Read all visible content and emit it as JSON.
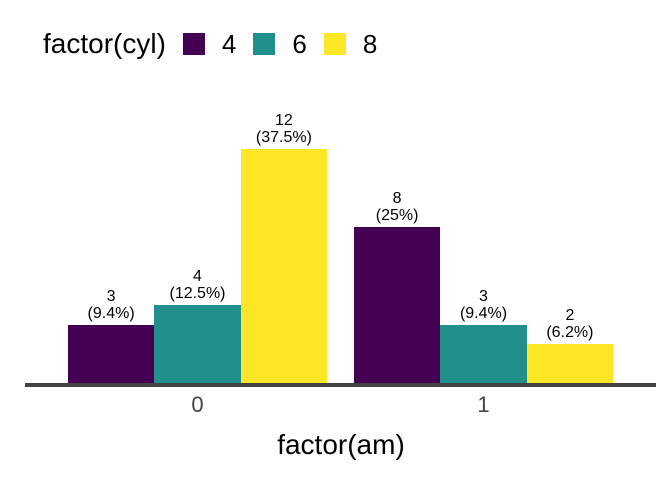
{
  "chart_data": {
    "type": "bar",
    "title": "",
    "xlabel": "factor(am)",
    "ylabel": "",
    "categories": [
      "0",
      "1"
    ],
    "legend": {
      "title": "factor(cyl)",
      "position": "top-left"
    },
    "series": [
      {
        "name": "4",
        "color": "#440154",
        "values": [
          3,
          8
        ],
        "labels": [
          [
            "3",
            "(9.4%)"
          ],
          [
            "8",
            "(25%)"
          ]
        ]
      },
      {
        "name": "6",
        "color": "#21908C",
        "values": [
          4,
          3
        ],
        "labels": [
          [
            "4",
            "(12.5%)"
          ],
          [
            "3",
            "(9.4%)"
          ]
        ]
      },
      {
        "name": "8",
        "color": "#FDE725",
        "values": [
          12,
          2
        ],
        "labels": [
          [
            "12",
            "(37.5%)"
          ],
          [
            "2",
            "(6.2%)"
          ]
        ]
      }
    ],
    "ylim": [
      0,
      12.6
    ],
    "grid": false,
    "axis_line_color": "#424242",
    "tick_label_color": "#444444"
  }
}
